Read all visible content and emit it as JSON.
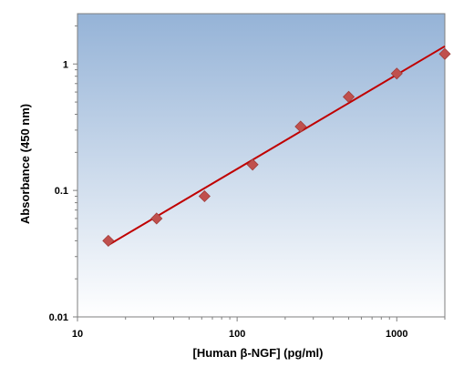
{
  "chart_data": {
    "type": "scatter",
    "title": "",
    "xlabel": "[Human β-NGF] (pg/ml)",
    "ylabel": "Absorbance (450 nm)",
    "x_scale": "log",
    "y_scale": "log",
    "xlim": [
      10,
      2000
    ],
    "ylim": [
      0.01,
      2.5
    ],
    "x_ticks": [
      {
        "value": 10,
        "label": "10"
      },
      {
        "value": 100,
        "label": "100"
      },
      {
        "value": 1000,
        "label": "1000"
      }
    ],
    "y_ticks": [
      {
        "value": 0.01,
        "label": "0.01"
      },
      {
        "value": 0.1,
        "label": "0.1"
      },
      {
        "value": 1,
        "label": "1"
      }
    ],
    "grid": false,
    "legend": "none",
    "series": [
      {
        "type": "scatter",
        "marker": "diamond",
        "color": "#c0504d",
        "x": [
          15.6,
          31.3,
          62.5,
          125,
          250,
          500,
          1000,
          2000
        ],
        "y": [
          0.04,
          0.06,
          0.09,
          0.16,
          0.32,
          0.55,
          0.84,
          1.2
        ]
      },
      {
        "type": "line",
        "color": "#c00000",
        "x": [
          15.6,
          2000
        ],
        "y": [
          0.037,
          1.38
        ]
      }
    ],
    "plot_background": {
      "top": "#95b3d7",
      "bottom": "#ffffff"
    }
  }
}
